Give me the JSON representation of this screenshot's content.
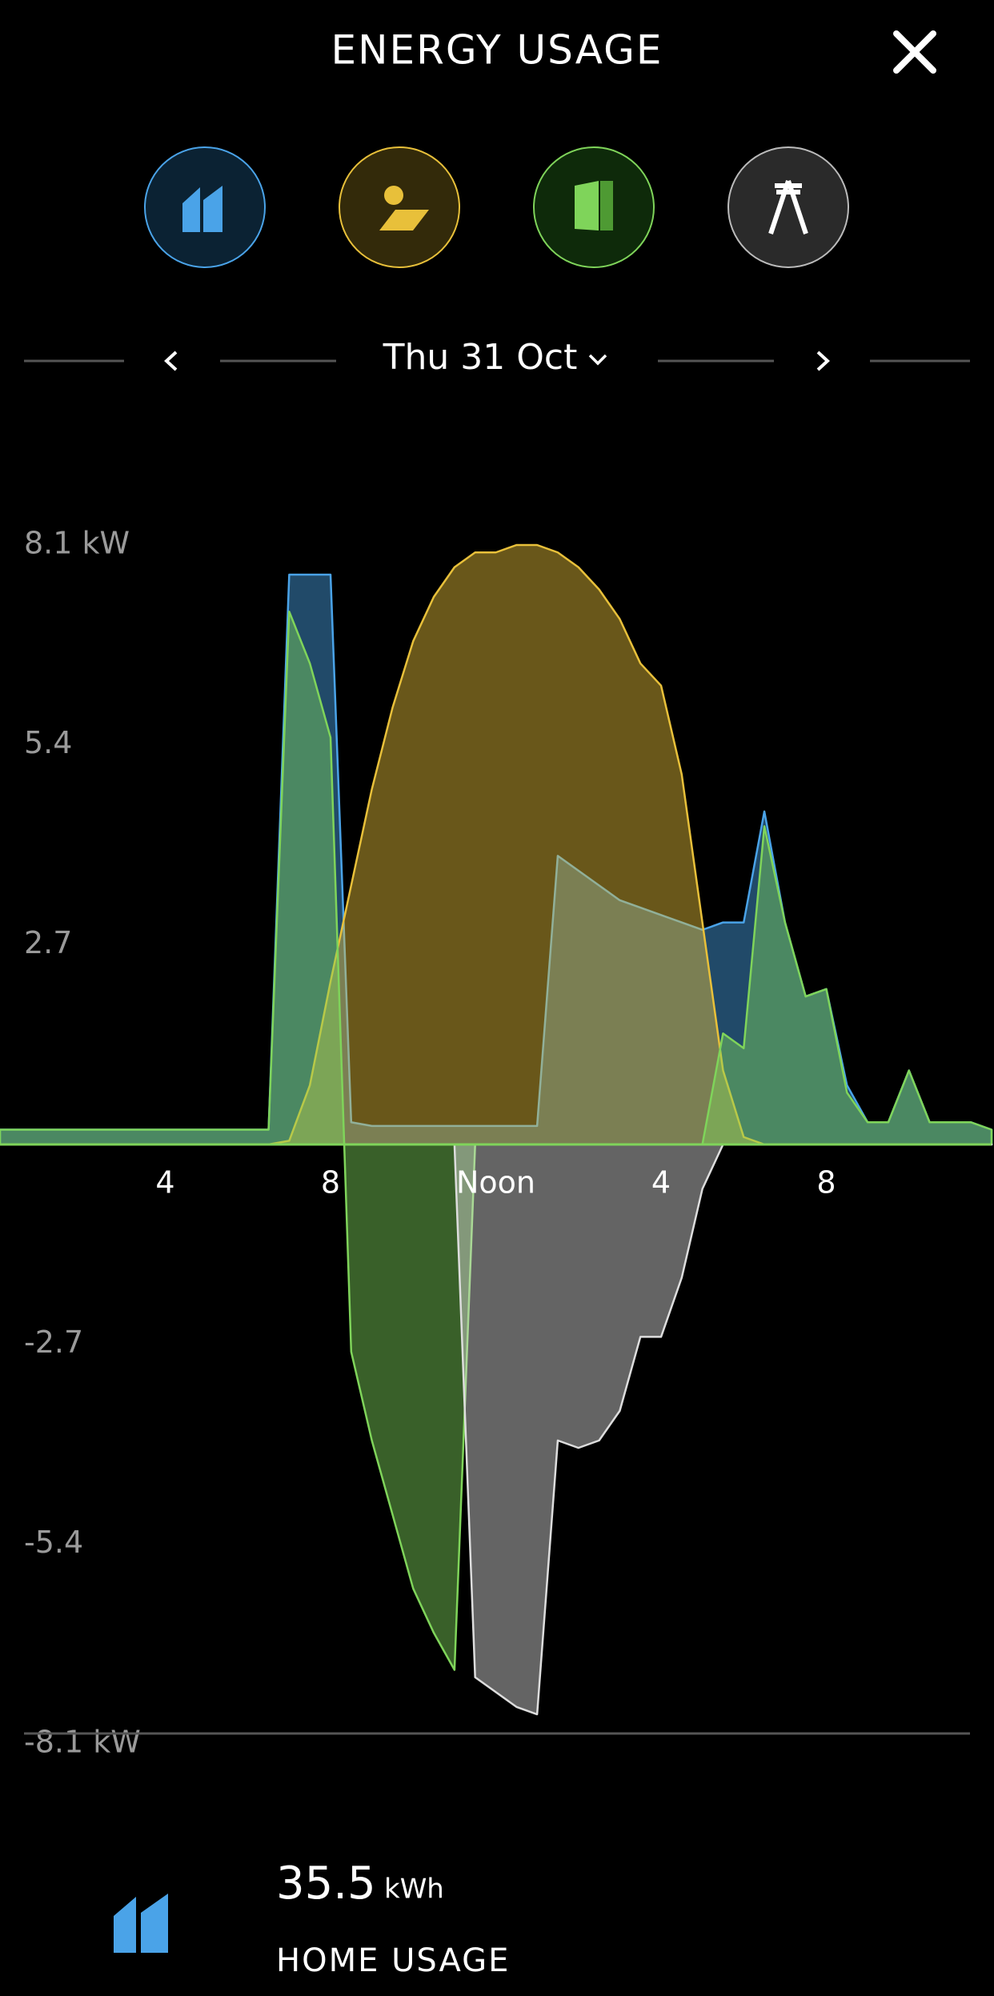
{
  "header": {
    "title": "ENERGY USAGE"
  },
  "date": {
    "label": "Thu 31 Oct"
  },
  "chart_data": {
    "type": "area",
    "x": [
      0,
      0.5,
      1,
      1.5,
      2,
      2.5,
      3,
      3.5,
      4,
      4.5,
      5,
      5.5,
      6,
      6.5,
      7,
      7.5,
      8,
      8.5,
      9,
      9.5,
      10,
      10.5,
      11,
      11.5,
      12,
      12.5,
      13,
      13.5,
      14,
      14.5,
      15,
      15.5,
      16,
      16.5,
      17,
      17.5,
      18,
      18.5,
      19,
      19.5,
      20,
      20.5,
      21,
      21.5,
      22,
      22.5,
      23,
      23.5,
      24
    ],
    "xlim": [
      0,
      24
    ],
    "xticks": [
      4,
      8,
      {
        "value": 12,
        "label": "Noon"
      },
      {
        "value": 16,
        "label": "4"
      },
      {
        "value": 20,
        "label": "8"
      }
    ],
    "ylim": [
      -8.1,
      8.1
    ],
    "yticks": [
      {
        "value": 8.1,
        "label": "8.1 kW"
      },
      5.4,
      2.7,
      -2.7,
      -5.4,
      {
        "value": -8.1,
        "label": "-8.1 kW"
      }
    ],
    "grid": false,
    "series": [
      {
        "color": "#4aa3e8",
        "values": [
          0.2,
          0.2,
          0.2,
          0.2,
          0.2,
          0.2,
          0.2,
          0.2,
          0.2,
          0.2,
          0.2,
          0.2,
          0.2,
          0.2,
          7.7,
          7.7,
          7.7,
          0.3,
          0.25,
          0.25,
          0.25,
          0.25,
          0.25,
          0.25,
          0.25,
          0.25,
          0.25,
          3.9,
          3.7,
          3.5,
          3.3,
          3.2,
          3.1,
          3.0,
          2.9,
          3.0,
          3.0,
          4.5,
          3.0,
          2.0,
          2.1,
          0.8,
          0.3,
          0.3,
          1.0,
          0.3,
          0.3,
          0.3,
          0.2
        ]
      },
      {
        "color": "#e8c03a",
        "values": [
          0,
          0,
          0,
          0,
          0,
          0,
          0,
          0,
          0,
          0,
          0,
          0,
          0,
          0,
          0.05,
          0.8,
          2.2,
          3.5,
          4.8,
          5.9,
          6.8,
          7.4,
          7.8,
          8.0,
          8.0,
          8.1,
          8.1,
          8.0,
          7.8,
          7.5,
          7.1,
          6.5,
          6.2,
          5.0,
          3.0,
          1.0,
          0.1,
          0,
          0,
          0,
          0,
          0,
          0,
          0,
          0,
          0,
          0,
          0,
          0
        ]
      },
      {
        "color": "#7fd45a",
        "values": [
          0.2,
          0.2,
          0.2,
          0.2,
          0.2,
          0.2,
          0.2,
          0.2,
          0.2,
          0.2,
          0.2,
          0.2,
          0.2,
          0.2,
          7.2,
          6.5,
          5.5,
          -2.8,
          -4.0,
          -5.0,
          -6.0,
          -6.6,
          -7.1,
          0,
          0,
          0,
          0,
          0,
          0,
          0,
          0,
          0,
          0,
          0,
          0,
          1.5,
          1.3,
          4.3,
          3.0,
          2.0,
          2.1,
          0.7,
          0.3,
          0.3,
          1.0,
          0.3,
          0.3,
          0.3,
          0.2
        ]
      },
      {
        "color": "#dddddd",
        "values": [
          0,
          0,
          0,
          0,
          0,
          0,
          0,
          0,
          0,
          0,
          0,
          0,
          0,
          0,
          0,
          0,
          0,
          0,
          0,
          0,
          0,
          0,
          0,
          -7.2,
          -7.4,
          -7.6,
          -7.7,
          -4.0,
          -4.1,
          -4.0,
          -3.6,
          -2.6,
          -2.6,
          -1.8,
          -0.6,
          0,
          0,
          0,
          0,
          0,
          0,
          0,
          0,
          0,
          0,
          0,
          0,
          0,
          0
        ]
      }
    ]
  },
  "summary": {
    "value": 35.5,
    "unit": "kWh",
    "label": "HOME USAGE"
  }
}
